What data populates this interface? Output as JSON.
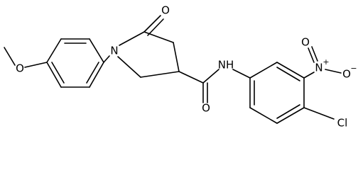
{
  "atoms": [
    {
      "label": "O"
    },
    {
      "label": "N"
    },
    {
      "label": "O"
    },
    {
      "label": "NH"
    },
    {
      "label": "O"
    },
    {
      "label": "N",
      "charge": "+"
    },
    {
      "label": "O"
    },
    {
      "label": "O",
      "charge": "−"
    },
    {
      "label": "Cl"
    }
  ]
}
